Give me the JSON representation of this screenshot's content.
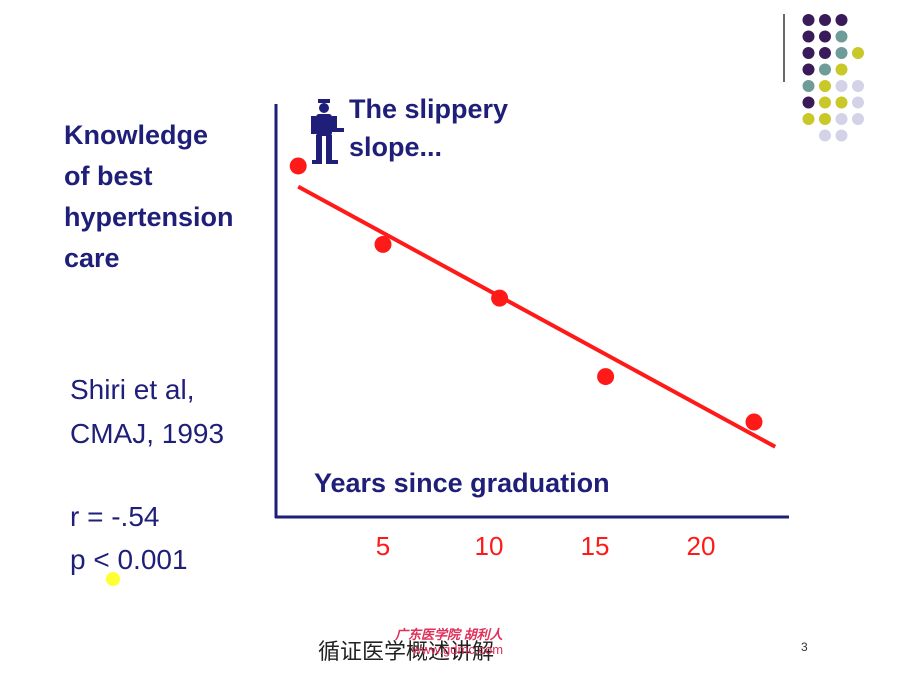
{
  "ylabel_lines": [
    "Knowledge",
    "of best",
    "hypertension",
    "care"
  ],
  "citation_lines": [
    "Shiri et al,",
    "CMAJ, 1993"
  ],
  "stats_lines": [
    "r = -.54",
    "p < 0.001"
  ],
  "annotation_lines": [
    "The slippery",
    "slope..."
  ],
  "annotation_icon": "person-icon",
  "footer": {
    "text": "循证医学概述讲解",
    "stamp_line1": "广东医学院 胡利人",
    "stamp_line2": "www.gdmc.com",
    "page": "3"
  },
  "colors": {
    "text": "#1f1f7a",
    "accent": "#ff1a1a",
    "dot_purple": "#3b1a5a",
    "dot_teal": "#6f9c98",
    "dot_olive": "#c8c828",
    "dot_lavender": "#d4d2e8"
  },
  "chart_data": {
    "type": "scatter",
    "xlabel": "Years since graduation",
    "ylabel": "Knowledge of best hypertension care",
    "ticks": [
      5,
      10,
      15,
      20
    ],
    "x_range": [
      0,
      24
    ],
    "points": [
      {
        "x": 1,
        "y": 0.85
      },
      {
        "x": 5,
        "y": 0.66
      },
      {
        "x": 10.5,
        "y": 0.53
      },
      {
        "x": 15.5,
        "y": 0.34
      },
      {
        "x": 22.5,
        "y": 0.23
      }
    ],
    "trendline": {
      "x0": 1,
      "y0": 0.8,
      "x1": 23.5,
      "y1": 0.17
    },
    "y_range": [
      0,
      1
    ]
  }
}
